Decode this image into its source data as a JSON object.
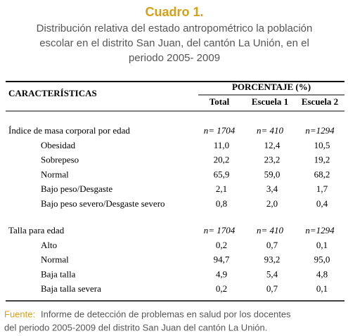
{
  "header": {
    "title": "Cuadro 1.",
    "subtitle": [
      "Distribución relativa del estado antropométrico la población",
      "escolar en el distrito San Juan, del cantón La Unión, en el",
      "periodo 2005- 2009"
    ]
  },
  "table": {
    "characteristics": "CARACTERÍSTICAS",
    "percentage": "PORCENTAJE (%)",
    "columns": [
      "Total",
      "Escuela 1",
      "Escuela 2"
    ],
    "groups": [
      {
        "label": "Índice de masa corporal por edad",
        "n": [
          "n= 1704",
          "n= 410",
          "n=1294"
        ],
        "rows": [
          {
            "label": "Obesidad",
            "values": [
              "11,0",
              "12,4",
              "10,5"
            ]
          },
          {
            "label": "Sobrepeso",
            "values": [
              "20,2",
              "23,2",
              "19,2"
            ]
          },
          {
            "label": "Normal",
            "values": [
              "65,9",
              "59,0",
              "68,2"
            ]
          },
          {
            "label": "Bajo peso/Desgaste",
            "values": [
              "2,1",
              "3,4",
              "1,7"
            ]
          },
          {
            "label": "Bajo peso severo/Desgaste severo",
            "values": [
              "0,8",
              "2,0",
              "0,4"
            ]
          }
        ]
      },
      {
        "label": "Talla para edad",
        "n": [
          "n= 1704",
          "n= 410",
          "n=1294"
        ],
        "rows": [
          {
            "label": "Alto",
            "values": [
              "0,2",
              "0,7",
              "0,1"
            ]
          },
          {
            "label": "Normal",
            "values": [
              "94,7",
              "93,2",
              "95,0"
            ]
          },
          {
            "label": "Baja talla",
            "values": [
              "4,9",
              "5,4",
              "4,8"
            ]
          },
          {
            "label": "Baja talla severa",
            "values": [
              "0,2",
              "0,7",
              "0,1"
            ]
          }
        ]
      }
    ]
  },
  "source": {
    "label": "Fuente:",
    "lines": [
      "Informe de detección de problemas en salud por los docentes",
      "del periodo 2005-2009 del distrito San Juan del cantón La Unión."
    ]
  }
}
